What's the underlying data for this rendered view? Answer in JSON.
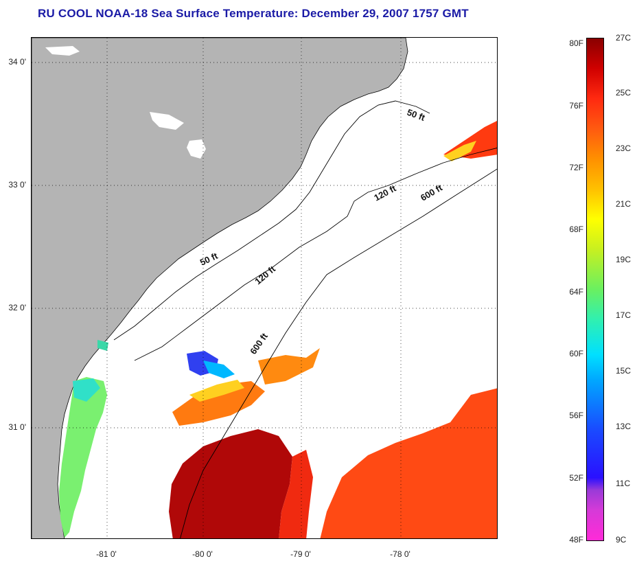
{
  "title": "RU COOL  NOAA-18  Sea Surface Temperature:  December 29, 2007 1757 GMT",
  "lat_labels": [
    "34 0'",
    "33 0'",
    "32 0'",
    "31 0'"
  ],
  "lon_labels": [
    "-81 0'",
    "-80 0'",
    "-79 0'",
    "-78 0'"
  ],
  "contour_labels": {
    "c50_north": "50 ft",
    "c50_south": "50 ft",
    "c120_north": "120 ft",
    "c120_south": "120 ft",
    "c600_north": "600 ft",
    "c600_south": "600 ft"
  },
  "colorbar": {
    "f_labels": [
      "80F",
      "76F",
      "72F",
      "68F",
      "64F",
      "60F",
      "56F",
      "52F",
      "48F"
    ],
    "c_labels": [
      "27C",
      "25C",
      "23C",
      "21C",
      "19C",
      "17C",
      "15C",
      "13C",
      "11C",
      "9C"
    ]
  },
  "colors": {
    "land": "#b4b4b4",
    "title": "#1a1aa6",
    "warm_water": "#ff4a14",
    "hot_water": "#b00808",
    "cool_water": "#7af070"
  }
}
